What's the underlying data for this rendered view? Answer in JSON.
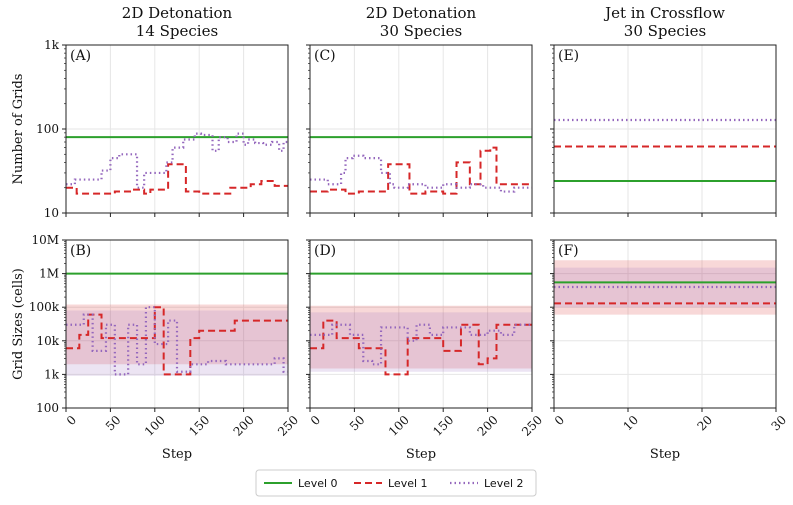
{
  "colors": {
    "level0": "#2ca02c",
    "level1": "#d62728",
    "level2": "#9467bd",
    "grid": "#e6e6e6",
    "frame": "#222222"
  },
  "legend": {
    "entries": [
      "Level 0",
      "Level 1",
      "Level 2"
    ]
  },
  "chart_data": [
    {
      "id": "A",
      "panel_label": "(A)",
      "type": "line",
      "title": [
        "2D Detonation",
        "14 Species"
      ],
      "ylabel": "Number of Grids",
      "xlabel": "",
      "yscale": "log",
      "ylim": [
        10,
        1000
      ],
      "xlim": [
        0,
        250
      ],
      "xticks": [
        0,
        50,
        100,
        150,
        200,
        250
      ],
      "xticklabels_visible": false,
      "yticks": [
        10,
        100,
        1000
      ],
      "yticklabels": [
        "10",
        "100",
        "1k"
      ],
      "series": [
        {
          "name": "Level 0",
          "x": [
            0,
            250
          ],
          "y": [
            80,
            80
          ]
        },
        {
          "name": "Level 1",
          "x": [
            0,
            12,
            12,
            55,
            55,
            75,
            75,
            88,
            88,
            95,
            95,
            115,
            115,
            135,
            135,
            150,
            150,
            185,
            185,
            208,
            208,
            220,
            220,
            235,
            235,
            250
          ],
          "y": [
            20,
            20,
            17,
            17,
            18,
            18,
            19,
            19,
            17,
            17,
            19,
            19,
            38,
            38,
            18,
            18,
            17,
            17,
            20,
            20,
            22,
            22,
            24,
            24,
            21,
            21
          ]
        },
        {
          "name": "Level 2",
          "x": [
            0,
            10,
            10,
            40,
            40,
            50,
            50,
            60,
            60,
            80,
            80,
            88,
            88,
            100,
            100,
            113,
            113,
            120,
            120,
            132,
            132,
            145,
            145,
            152,
            152,
            165,
            165,
            172,
            172,
            182,
            182,
            192,
            192,
            200,
            200,
            205,
            205,
            213,
            213,
            222,
            222,
            232,
            232,
            240,
            240,
            245,
            245,
            250
          ],
          "y": [
            22,
            22,
            25,
            25,
            32,
            32,
            45,
            45,
            50,
            50,
            20,
            20,
            30,
            30,
            30,
            30,
            40,
            40,
            60,
            60,
            75,
            75,
            88,
            88,
            85,
            85,
            55,
            55,
            80,
            80,
            70,
            70,
            88,
            88,
            65,
            65,
            75,
            75,
            68,
            68,
            65,
            65,
            70,
            70,
            55,
            55,
            70,
            70
          ]
        }
      ]
    },
    {
      "id": "C",
      "panel_label": "(C)",
      "type": "line",
      "title": [
        "2D Detonation",
        "30 Species"
      ],
      "ylabel": "",
      "xlabel": "",
      "yscale": "log",
      "ylim": [
        10,
        1000
      ],
      "xlim": [
        0,
        250
      ],
      "xticks": [
        0,
        50,
        100,
        150,
        200,
        250
      ],
      "xticklabels_visible": false,
      "yticks": [
        10,
        100,
        1000
      ],
      "yticklabels": [
        "",
        "",
        ""
      ],
      "series": [
        {
          "name": "Level 0",
          "x": [
            0,
            250
          ],
          "y": [
            80,
            80
          ]
        },
        {
          "name": "Level 1",
          "x": [
            0,
            20,
            20,
            40,
            40,
            55,
            55,
            68,
            68,
            88,
            88,
            112,
            112,
            130,
            130,
            150,
            150,
            165,
            165,
            180,
            180,
            192,
            192,
            203,
            203,
            210,
            210,
            218,
            218,
            250
          ],
          "y": [
            18,
            18,
            19,
            19,
            17,
            17,
            18,
            18,
            18,
            18,
            38,
            38,
            17,
            17,
            18,
            18,
            17,
            17,
            40,
            40,
            22,
            22,
            55,
            55,
            60,
            60,
            22,
            22,
            22,
            22
          ]
        },
        {
          "name": "Level 2",
          "x": [
            0,
            20,
            20,
            35,
            35,
            40,
            40,
            48,
            48,
            60,
            60,
            80,
            80,
            90,
            90,
            95,
            95,
            110,
            110,
            130,
            130,
            150,
            150,
            165,
            165,
            180,
            180,
            195,
            195,
            215,
            215,
            230,
            230,
            250
          ],
          "y": [
            25,
            25,
            22,
            22,
            30,
            30,
            45,
            45,
            48,
            48,
            45,
            45,
            30,
            30,
            22,
            22,
            20,
            20,
            22,
            22,
            20,
            20,
            22,
            22,
            20,
            20,
            22,
            22,
            20,
            20,
            18,
            18,
            20,
            20
          ]
        }
      ]
    },
    {
      "id": "E",
      "panel_label": "(E)",
      "type": "line",
      "title": [
        "Jet in Crossflow",
        "30 Species"
      ],
      "ylabel": "",
      "xlabel": "",
      "yscale": "log",
      "ylim": [
        10,
        1000
      ],
      "xlim": [
        0,
        30
      ],
      "xticks": [
        0,
        10,
        20,
        30
      ],
      "xticklabels_visible": false,
      "yticks": [
        10,
        100,
        1000
      ],
      "yticklabels": [
        "",
        "",
        ""
      ],
      "series": [
        {
          "name": "Level 0",
          "x": [
            0,
            30
          ],
          "y": [
            24,
            24
          ]
        },
        {
          "name": "Level 1",
          "x": [
            0,
            30
          ],
          "y": [
            62,
            62
          ]
        },
        {
          "name": "Level 2",
          "x": [
            0,
            30
          ],
          "y": [
            128,
            128
          ]
        }
      ]
    },
    {
      "id": "B",
      "panel_label": "(B)",
      "type": "line",
      "title": [],
      "ylabel": "Grid Sizes (cells)",
      "xlabel": "Step",
      "yscale": "log",
      "ylim": [
        100,
        10000000
      ],
      "xlim": [
        0,
        250
      ],
      "xticks": [
        0,
        50,
        100,
        150,
        200,
        250
      ],
      "xticklabels_visible": true,
      "xticklabels": [
        "0",
        "50",
        "100",
        "150",
        "200",
        "250"
      ],
      "yticks": [
        100,
        1000,
        10000,
        100000,
        1000000,
        10000000
      ],
      "yticklabels": [
        "100",
        "1k",
        "10k",
        "100k",
        "1M",
        "10M"
      ],
      "bands": [
        {
          "name": "Level 1 range",
          "x": [
            0,
            250
          ],
          "low": [
            2000,
            2000
          ],
          "high": [
            120000,
            120000
          ]
        },
        {
          "name": "Level 2 range",
          "x": [
            0,
            250
          ],
          "low": [
            900,
            900
          ],
          "high": [
            80000,
            80000
          ]
        }
      ],
      "series": [
        {
          "name": "Level 0",
          "x": [
            0,
            250
          ],
          "y": [
            1000000,
            1000000
          ]
        },
        {
          "name": "Level 1",
          "x": [
            0,
            15,
            15,
            25,
            25,
            40,
            40,
            50,
            50,
            80,
            80,
            100,
            100,
            110,
            110,
            115,
            115,
            140,
            140,
            150,
            150,
            175,
            175,
            190,
            190,
            210,
            210,
            250
          ],
          "y": [
            6000,
            6000,
            15000,
            15000,
            60000,
            60000,
            12000,
            12000,
            12000,
            12000,
            12000,
            12000,
            100000,
            100000,
            1000,
            1000,
            1000,
            1000,
            12000,
            12000,
            20000,
            20000,
            20000,
            20000,
            40000,
            40000,
            40000,
            40000
          ]
        },
        {
          "name": "Level 2",
          "x": [
            0,
            20,
            20,
            30,
            30,
            45,
            45,
            55,
            55,
            70,
            70,
            80,
            80,
            90,
            90,
            100,
            100,
            115,
            115,
            125,
            125,
            140,
            140,
            160,
            160,
            180,
            180,
            200,
            200,
            215,
            215,
            235,
            235,
            245,
            245,
            250
          ],
          "y": [
            30000,
            30000,
            60000,
            60000,
            5000,
            5000,
            30000,
            30000,
            1000,
            1000,
            30000,
            30000,
            2000,
            2000,
            100000,
            100000,
            8000,
            8000,
            40000,
            40000,
            1200,
            1200,
            2000,
            2000,
            2500,
            2500,
            2000,
            2000,
            2000,
            2000,
            2000,
            2000,
            3000,
            3000,
            1200,
            1200
          ]
        }
      ]
    },
    {
      "id": "D",
      "panel_label": "(D)",
      "type": "line",
      "title": [],
      "ylabel": "",
      "xlabel": "Step",
      "yscale": "log",
      "ylim": [
        100,
        10000000
      ],
      "xlim": [
        0,
        250
      ],
      "xticks": [
        0,
        50,
        100,
        150,
        200,
        250
      ],
      "xticklabels_visible": true,
      "xticklabels": [
        "0",
        "50",
        "100",
        "150",
        "200",
        "250"
      ],
      "yticks": [
        100,
        1000,
        10000,
        100000,
        1000000,
        10000000
      ],
      "yticklabels": [
        "",
        "",
        "",
        "",
        "",
        ""
      ],
      "bands": [
        {
          "name": "Level 1 range",
          "x": [
            0,
            250
          ],
          "low": [
            1500,
            1500
          ],
          "high": [
            110000,
            110000
          ]
        },
        {
          "name": "Level 2 range",
          "x": [
            0,
            250
          ],
          "low": [
            1200,
            1200
          ],
          "high": [
            70000,
            70000
          ]
        }
      ],
      "series": [
        {
          "name": "Level 0",
          "x": [
            0,
            250
          ],
          "y": [
            1000000,
            1000000
          ]
        },
        {
          "name": "Level 1",
          "x": [
            0,
            15,
            15,
            30,
            30,
            55,
            55,
            85,
            85,
            110,
            110,
            150,
            150,
            170,
            170,
            190,
            190,
            200,
            200,
            210,
            210,
            220,
            220,
            250
          ],
          "y": [
            6000,
            6000,
            40000,
            40000,
            12000,
            12000,
            6000,
            6000,
            1000,
            1000,
            12000,
            12000,
            5000,
            5000,
            30000,
            30000,
            2000,
            2000,
            3000,
            3000,
            30000,
            30000,
            30000,
            30000
          ]
        },
        {
          "name": "Level 2",
          "x": [
            0,
            25,
            25,
            45,
            45,
            60,
            60,
            70,
            70,
            80,
            80,
            110,
            110,
            120,
            120,
            135,
            135,
            150,
            150,
            180,
            180,
            200,
            200,
            215,
            215,
            230,
            230,
            250
          ],
          "y": [
            15000,
            15000,
            30000,
            30000,
            15000,
            15000,
            2500,
            2500,
            2000,
            2000,
            25000,
            25000,
            10000,
            10000,
            30000,
            30000,
            15000,
            15000,
            25000,
            25000,
            15000,
            15000,
            20000,
            20000,
            15000,
            15000,
            30000,
            30000
          ]
        }
      ]
    },
    {
      "id": "F",
      "panel_label": "(F)",
      "type": "line",
      "title": [],
      "ylabel": "",
      "xlabel": "Step",
      "yscale": "log",
      "ylim": [
        100,
        10000000
      ],
      "xlim": [
        0,
        30
      ],
      "xticks": [
        0,
        10,
        20,
        30
      ],
      "xticklabels_visible": true,
      "xticklabels": [
        "0",
        "10",
        "20",
        "30"
      ],
      "yticks": [
        100,
        1000,
        10000,
        100000,
        1000000,
        10000000
      ],
      "yticklabels": [
        "",
        "",
        "",
        "",
        "",
        ""
      ],
      "bands": [
        {
          "name": "Level 1 range",
          "x": [
            0,
            30
          ],
          "low": [
            60000,
            60000
          ],
          "high": [
            2500000,
            2500000
          ]
        },
        {
          "name": "Level 2 range",
          "x": [
            0,
            30
          ],
          "low": [
            100000,
            100000
          ],
          "high": [
            1500000,
            1500000
          ]
        }
      ],
      "series": [
        {
          "name": "Level 0",
          "x": [
            0,
            30
          ],
          "y": [
            550000,
            550000
          ]
        },
        {
          "name": "Level 1",
          "x": [
            0,
            30
          ],
          "y": [
            130000,
            130000
          ]
        },
        {
          "name": "Level 2",
          "x": [
            0,
            30
          ],
          "y": [
            400000,
            400000
          ]
        }
      ]
    }
  ]
}
